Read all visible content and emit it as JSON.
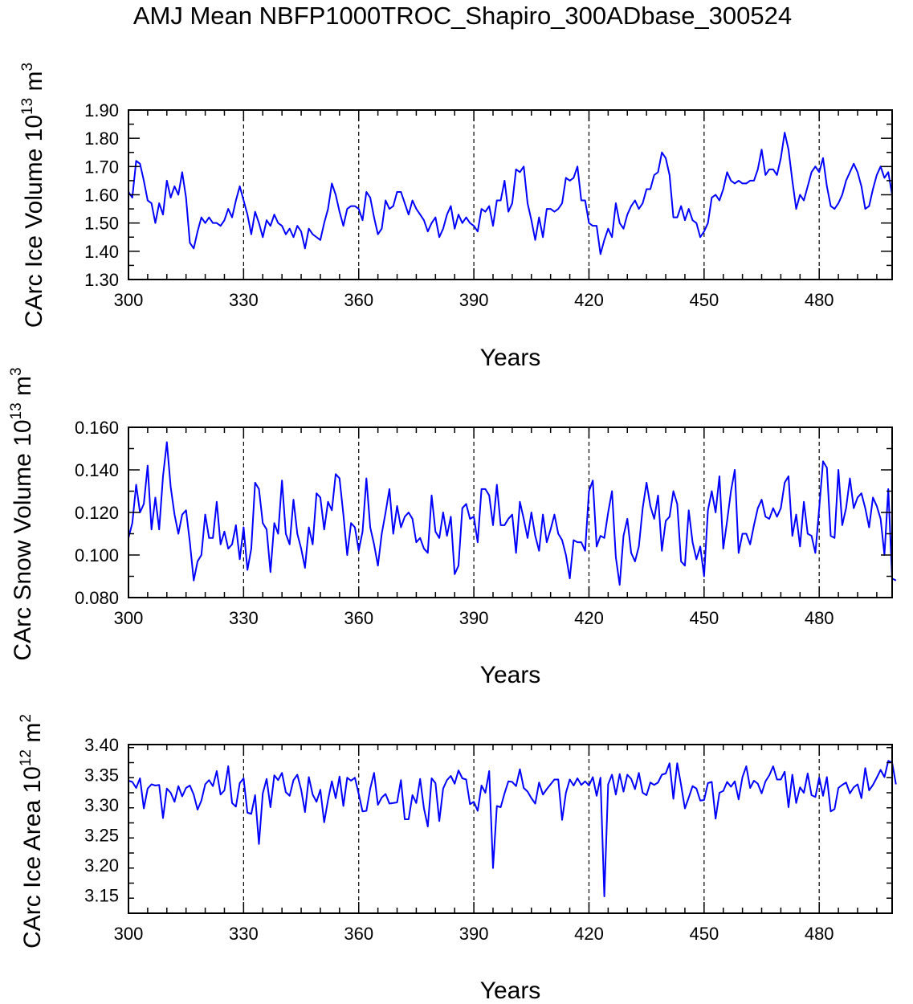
{
  "title": "AMJ Mean NBFP1000TROC_Shapiro_300ADbase_300524",
  "colors": {
    "series": "#0000ff",
    "axis": "#000000",
    "refline": "#000000"
  },
  "chart_data": [
    {
      "type": "line",
      "id": "ice-volume",
      "xlabel": "Years",
      "ylabel_prefix": "CArc Ice Volume 10",
      "ylabel_exp": "13",
      "ylabel_unit": " m",
      "ylabel_unit_exp": "3",
      "xlim": [
        300,
        499
      ],
      "ylim": [
        1.3,
        1.9
      ],
      "xticks": [
        300,
        330,
        360,
        390,
        420,
        450,
        480
      ],
      "yticks": [
        1.3,
        1.4,
        1.5,
        1.6,
        1.7,
        1.8,
        1.9
      ],
      "ytick_decimals": 2,
      "refline_years": [
        330,
        360,
        390,
        420,
        450,
        480
      ],
      "x_start": 300,
      "values": [
        1.61,
        1.59,
        1.72,
        1.71,
        1.65,
        1.58,
        1.57,
        1.5,
        1.57,
        1.53,
        1.65,
        1.59,
        1.63,
        1.6,
        1.68,
        1.59,
        1.43,
        1.41,
        1.47,
        1.52,
        1.5,
        1.52,
        1.5,
        1.5,
        1.49,
        1.51,
        1.55,
        1.52,
        1.58,
        1.63,
        1.58,
        1.53,
        1.46,
        1.54,
        1.5,
        1.45,
        1.51,
        1.49,
        1.53,
        1.5,
        1.49,
        1.46,
        1.48,
        1.45,
        1.49,
        1.47,
        1.41,
        1.48,
        1.46,
        1.45,
        1.44,
        1.5,
        1.55,
        1.64,
        1.6,
        1.54,
        1.49,
        1.55,
        1.56,
        1.56,
        1.55,
        1.51,
        1.61,
        1.59,
        1.52,
        1.46,
        1.48,
        1.58,
        1.55,
        1.56,
        1.61,
        1.61,
        1.57,
        1.53,
        1.58,
        1.55,
        1.53,
        1.51,
        1.47,
        1.5,
        1.52,
        1.45,
        1.48,
        1.53,
        1.56,
        1.48,
        1.53,
        1.5,
        1.52,
        1.5,
        1.49,
        1.47,
        1.55,
        1.54,
        1.56,
        1.49,
        1.58,
        1.58,
        1.65,
        1.54,
        1.57,
        1.69,
        1.68,
        1.7,
        1.57,
        1.51,
        1.44,
        1.52,
        1.45,
        1.55,
        1.55,
        1.54,
        1.55,
        1.57,
        1.66,
        1.65,
        1.66,
        1.7,
        1.58,
        1.58,
        1.5,
        1.49,
        1.49,
        1.39,
        1.44,
        1.48,
        1.45,
        1.57,
        1.5,
        1.48,
        1.53,
        1.56,
        1.58,
        1.55,
        1.57,
        1.62,
        1.62,
        1.67,
        1.68,
        1.75,
        1.73,
        1.67,
        1.52,
        1.52,
        1.56,
        1.51,
        1.55,
        1.51,
        1.5,
        1.45,
        1.47,
        1.5,
        1.59,
        1.6,
        1.58,
        1.62,
        1.68,
        1.65,
        1.64,
        1.65,
        1.64,
        1.64,
        1.65,
        1.65,
        1.69,
        1.76,
        1.67,
        1.69,
        1.69,
        1.67,
        1.73,
        1.82,
        1.76,
        1.65,
        1.55,
        1.6,
        1.58,
        1.63,
        1.68,
        1.7,
        1.68,
        1.73,
        1.63,
        1.56,
        1.55,
        1.57,
        1.6,
        1.65,
        1.68,
        1.71,
        1.68,
        1.63,
        1.55,
        1.56,
        1.62,
        1.67,
        1.7,
        1.66,
        1.68,
        1.6
      ]
    },
    {
      "type": "line",
      "id": "snow-volume",
      "xlabel": "Years",
      "ylabel_prefix": "CArc Snow Volume 10",
      "ylabel_exp": "13",
      "ylabel_unit": " m",
      "ylabel_unit_exp": "3",
      "xlim": [
        300,
        499
      ],
      "ylim": [
        0.08,
        0.16
      ],
      "xticks": [
        300,
        330,
        360,
        390,
        420,
        450,
        480
      ],
      "yticks": [
        0.08,
        0.1,
        0.12,
        0.14,
        0.16
      ],
      "ytick_decimals": 3,
      "refline_years": [
        330,
        360,
        390,
        420,
        450,
        480
      ],
      "x_start": 300,
      "values": [
        0.108,
        0.115,
        0.133,
        0.12,
        0.124,
        0.142,
        0.112,
        0.127,
        0.112,
        0.137,
        0.153,
        0.132,
        0.119,
        0.11,
        0.119,
        0.121,
        0.106,
        0.088,
        0.097,
        0.1,
        0.119,
        0.108,
        0.108,
        0.125,
        0.105,
        0.111,
        0.103,
        0.105,
        0.114,
        0.098,
        0.113,
        0.093,
        0.103,
        0.134,
        0.131,
        0.115,
        0.112,
        0.092,
        0.115,
        0.11,
        0.135,
        0.11,
        0.105,
        0.126,
        0.11,
        0.103,
        0.094,
        0.113,
        0.105,
        0.129,
        0.127,
        0.112,
        0.125,
        0.121,
        0.138,
        0.136,
        0.119,
        0.1,
        0.115,
        0.113,
        0.102,
        0.111,
        0.136,
        0.113,
        0.105,
        0.095,
        0.11,
        0.12,
        0.131,
        0.11,
        0.123,
        0.113,
        0.118,
        0.12,
        0.117,
        0.106,
        0.108,
        0.103,
        0.101,
        0.128,
        0.111,
        0.108,
        0.12,
        0.109,
        0.118,
        0.091,
        0.095,
        0.122,
        0.124,
        0.117,
        0.118,
        0.106,
        0.131,
        0.131,
        0.128,
        0.114,
        0.133,
        0.114,
        0.114,
        0.117,
        0.119,
        0.101,
        0.125,
        0.117,
        0.108,
        0.12,
        0.109,
        0.102,
        0.119,
        0.106,
        0.112,
        0.119,
        0.11,
        0.107,
        0.1,
        0.089,
        0.107,
        0.106,
        0.106,
        0.102,
        0.13,
        0.135,
        0.104,
        0.109,
        0.108,
        0.12,
        0.13,
        0.099,
        0.086,
        0.109,
        0.117,
        0.101,
        0.097,
        0.104,
        0.122,
        0.134,
        0.123,
        0.117,
        0.128,
        0.102,
        0.116,
        0.118,
        0.13,
        0.124,
        0.097,
        0.095,
        0.121,
        0.106,
        0.098,
        0.104,
        0.09,
        0.121,
        0.13,
        0.12,
        0.137,
        0.103,
        0.116,
        0.13,
        0.14,
        0.101,
        0.11,
        0.11,
        0.105,
        0.114,
        0.122,
        0.126,
        0.118,
        0.117,
        0.122,
        0.118,
        0.122,
        0.134,
        0.137,
        0.109,
        0.119,
        0.104,
        0.125,
        0.11,
        0.109,
        0.101,
        0.122,
        0.144,
        0.141,
        0.109,
        0.108,
        0.14,
        0.114,
        0.122,
        0.136,
        0.122,
        0.127,
        0.129,
        0.122,
        0.113,
        0.127,
        0.123,
        0.117,
        0.1,
        0.131,
        0.089,
        0.088
      ]
    },
    {
      "type": "line",
      "id": "ice-area",
      "xlabel": "Years",
      "ylabel_prefix": "CArc Ice Area 10",
      "ylabel_exp": "12",
      "ylabel_unit": " m",
      "ylabel_unit_exp": "2",
      "xlim": [
        300,
        499
      ],
      "ylim": [
        3.12,
        3.4
      ],
      "xticks": [
        300,
        330,
        360,
        390,
        420,
        450,
        480
      ],
      "yticks": [
        3.15,
        3.2,
        3.25,
        3.3,
        3.35,
        3.4
      ],
      "ytick_decimals": 2,
      "refline_years": [
        330,
        360,
        390,
        420,
        450,
        480
      ],
      "x_start": 300,
      "values": [
        3.34,
        3.338,
        3.328,
        3.344,
        3.294,
        3.327,
        3.334,
        3.332,
        3.333,
        3.278,
        3.327,
        3.32,
        3.305,
        3.331,
        3.314,
        3.328,
        3.332,
        3.317,
        3.292,
        3.307,
        3.334,
        3.341,
        3.331,
        3.356,
        3.317,
        3.324,
        3.364,
        3.303,
        3.297,
        3.336,
        3.344,
        3.287,
        3.285,
        3.316,
        3.235,
        3.319,
        3.343,
        3.296,
        3.349,
        3.341,
        3.353,
        3.321,
        3.315,
        3.341,
        3.35,
        3.325,
        3.288,
        3.346,
        3.317,
        3.305,
        3.325,
        3.271,
        3.308,
        3.339,
        3.311,
        3.347,
        3.298,
        3.345,
        3.34,
        3.345,
        3.318,
        3.289,
        3.29,
        3.327,
        3.353,
        3.3,
        3.312,
        3.318,
        3.302,
        3.303,
        3.304,
        3.341,
        3.276,
        3.276,
        3.316,
        3.303,
        3.343,
        3.294,
        3.264,
        3.344,
        3.336,
        3.273,
        3.327,
        3.341,
        3.348,
        3.335,
        3.357,
        3.344,
        3.342,
        3.301,
        3.305,
        3.29,
        3.332,
        3.32,
        3.356,
        3.195,
        3.298,
        3.296,
        3.319,
        3.339,
        3.338,
        3.331,
        3.359,
        3.328,
        3.322,
        3.311,
        3.302,
        3.337,
        3.317,
        3.326,
        3.334,
        3.342,
        3.342,
        3.275,
        3.32,
        3.342,
        3.332,
        3.344,
        3.333,
        3.339,
        3.332,
        3.346,
        3.315,
        3.345,
        3.148,
        3.334,
        3.35,
        3.317,
        3.351,
        3.322,
        3.35,
        3.343,
        3.326,
        3.353,
        3.32,
        3.316,
        3.337,
        3.333,
        3.337,
        3.35,
        3.352,
        3.369,
        3.31,
        3.369,
        3.333,
        3.294,
        3.312,
        3.331,
        3.327,
        3.307,
        3.308,
        3.336,
        3.338,
        3.277,
        3.32,
        3.323,
        3.338,
        3.33,
        3.339,
        3.309,
        3.346,
        3.364,
        3.328,
        3.34,
        3.335,
        3.319,
        3.339,
        3.349,
        3.364,
        3.342,
        3.342,
        3.355,
        3.296,
        3.35,
        3.303,
        3.329,
        3.32,
        3.352,
        3.316,
        3.313,
        3.345,
        3.315,
        3.346,
        3.289,
        3.293,
        3.328,
        3.333,
        3.337,
        3.319,
        3.329,
        3.334,
        3.311,
        3.361,
        3.324,
        3.333,
        3.345,
        3.358,
        3.346,
        3.373,
        3.37,
        3.334
      ]
    }
  ]
}
